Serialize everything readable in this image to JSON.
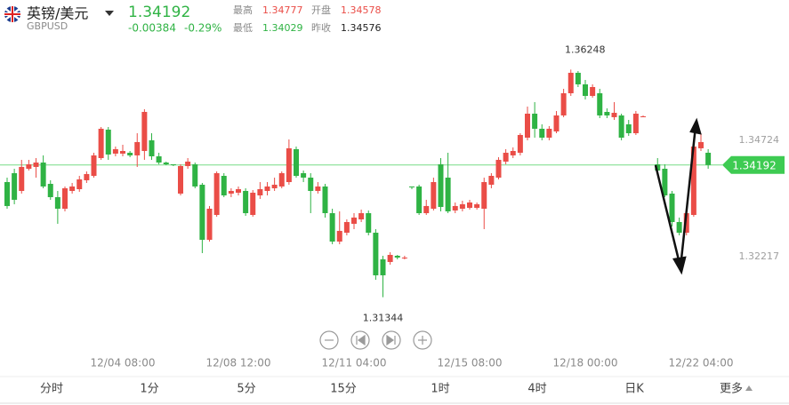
{
  "header": {
    "name": "英镑/美元",
    "code": "GBPUSD",
    "price": "1.34192",
    "change": "-0.00384",
    "change_pct": "-0.29%",
    "high_label": "最高",
    "high": "1.34777",
    "open_label": "开盘",
    "open": "1.34578",
    "low_label": "最低",
    "low": "1.34029",
    "prev_label": "昨收",
    "prev": "1.34576"
  },
  "tabs": [
    "分时",
    "1分",
    "5分",
    "15分",
    "1时",
    "4时",
    "日K",
    "更多"
  ],
  "chart_data": {
    "type": "candlestick",
    "up_color": "#ea4d47",
    "down_color": "#2fb344",
    "last_color": "#3ecb52",
    "ylim": [
      1.31049,
      1.36982
    ],
    "yticks": [
      1.34724,
      1.32217
    ],
    "last_price": 1.34192,
    "max_label": 1.36248,
    "min_label": 1.31344,
    "categories": [
      null,
      null,
      null,
      null,
      null,
      null,
      null,
      null,
      null,
      null,
      null,
      null,
      null,
      null,
      null,
      null,
      "12/04 08:00",
      null,
      null,
      null,
      null,
      null,
      null,
      null,
      null,
      null,
      null,
      null,
      null,
      null,
      null,
      null,
      "12/08 12:00",
      null,
      null,
      null,
      null,
      null,
      null,
      null,
      null,
      null,
      null,
      null,
      null,
      null,
      null,
      null,
      "12/11 04:00",
      null,
      null,
      null,
      null,
      null,
      null,
      null,
      null,
      null,
      null,
      null,
      null,
      null,
      null,
      null,
      "12/15 08:00",
      null,
      null,
      null,
      null,
      null,
      null,
      null,
      null,
      null,
      null,
      null,
      null,
      null,
      null,
      null,
      "12/18 00:00",
      null,
      null,
      null,
      null,
      null,
      null,
      null,
      null,
      null,
      null,
      null,
      null,
      null,
      null,
      null,
      "12/22 04:00",
      null
    ],
    "ohlc": [
      [
        1.33824,
        1.3392,
        1.3325,
        1.33308
      ],
      [
        1.34016,
        1.34111,
        1.33346,
        1.33442
      ],
      [
        1.33633,
        1.34303,
        1.33576,
        1.3415
      ],
      [
        1.34111,
        1.34303,
        1.34073,
        1.34207
      ],
      [
        1.3415,
        1.34341,
        1.3392,
        1.34245
      ],
      [
        1.34245,
        1.34399,
        1.3369,
        1.33729
      ],
      [
        1.33786,
        1.33863,
        1.33442,
        1.33499
      ],
      [
        1.33499,
        1.33633,
        1.32925,
        1.3325
      ],
      [
        1.3325,
        1.33729,
        1.33193,
        1.3369
      ],
      [
        1.33633,
        1.33805,
        1.33576,
        1.33729
      ],
      [
        1.33671,
        1.33958,
        1.33614,
        1.33882
      ],
      [
        1.33863,
        1.34054,
        1.33805,
        1.33997
      ],
      [
        1.33958,
        1.34456,
        1.3392,
        1.34399
      ],
      [
        1.34341,
        1.35011,
        1.34303,
        1.34973
      ],
      [
        1.34954,
        1.35011,
        1.34303,
        1.34418
      ],
      [
        1.34437,
        1.3459,
        1.34379,
        1.34533
      ],
      [
        1.34437,
        1.34628,
        1.34379,
        1.34494
      ],
      [
        1.34456,
        1.34494,
        1.3436,
        1.34399
      ],
      [
        1.34399,
        1.34877,
        1.3415,
        1.34686
      ],
      [
        1.34494,
        1.35394,
        1.34303,
        1.35336
      ],
      [
        1.34724,
        1.34877,
        1.34303,
        1.34379
      ],
      [
        1.34379,
        1.34456,
        1.34207,
        1.34245
      ],
      [
        1.34245,
        1.34265,
        1.34188,
        1.34207
      ],
      [
        1.34207,
        1.34207,
        1.34169,
        1.34188
      ],
      [
        1.33576,
        1.34207,
        1.33537,
        1.34169
      ],
      [
        1.34169,
        1.34341,
        1.34111,
        1.34265
      ],
      [
        1.34207,
        1.34245,
        1.3369,
        1.33729
      ],
      [
        1.33767,
        1.33805,
        1.32293,
        1.3258
      ],
      [
        1.3258,
        1.33308,
        1.32542,
        1.3325
      ],
      [
        1.33116,
        1.34054,
        1.33078,
        1.34016
      ],
      [
        1.33958,
        1.34016,
        1.33499,
        1.33537
      ],
      [
        1.33576,
        1.3369,
        1.33499,
        1.33633
      ],
      [
        1.33595,
        1.33729,
        1.33537,
        1.33671
      ],
      [
        1.33633,
        1.3369,
        1.33097,
        1.33154
      ],
      [
        1.33116,
        1.33652,
        1.33078,
        1.33595
      ],
      [
        1.33537,
        1.33824,
        1.33461,
        1.33671
      ],
      [
        1.33633,
        1.33824,
        1.33537,
        1.33729
      ],
      [
        1.3369,
        1.3392,
        1.33633,
        1.33767
      ],
      [
        1.33729,
        1.34054,
        1.3369,
        1.34016
      ],
      [
        1.33824,
        1.34743,
        1.33767,
        1.34552
      ],
      [
        1.34533,
        1.3459,
        1.3392,
        1.33958
      ],
      [
        1.34016,
        1.34073,
        1.33824,
        1.3392
      ],
      [
        1.3392,
        1.34016,
        1.33154,
        1.33633
      ],
      [
        1.33633,
        1.33824,
        1.33576,
        1.33729
      ],
      [
        1.33729,
        1.33786,
        1.33059,
        1.33154
      ],
      [
        1.33154,
        1.3325,
        1.32485,
        1.32542
      ],
      [
        1.32542,
        1.33193,
        1.32485,
        1.32772
      ],
      [
        1.32733,
        1.3302,
        1.32676,
        1.32963
      ],
      [
        1.32925,
        1.33154,
        1.3281,
        1.33059
      ],
      [
        1.3302,
        1.33231,
        1.32963,
        1.33154
      ],
      [
        1.33154,
        1.33212,
        1.32676,
        1.32733
      ],
      [
        1.32733,
        1.3281,
        1.31719,
        1.31815
      ],
      [
        1.32159,
        1.32236,
        1.31344,
        1.31815
      ],
      [
        1.32102,
        1.32312,
        1.32044,
        1.32255
      ],
      [
        1.32236,
        1.32255,
        1.32159,
        1.32197
      ],
      [
        1.32197,
        1.32236,
        1.32159,
        1.32197
      ],
      [
        1.33729,
        1.33729,
        1.33671,
        1.3371
      ],
      [
        1.33729,
        1.33767,
        1.33116,
        1.33154
      ],
      [
        1.33154,
        1.33442,
        1.33116,
        1.33308
      ],
      [
        1.3325,
        1.3392,
        1.33212,
        1.33824
      ],
      [
        1.34207,
        1.34341,
        1.33193,
        1.33288
      ],
      [
        1.3392,
        1.34456,
        1.33154,
        1.33193
      ],
      [
        1.33212,
        1.33384,
        1.33154,
        1.33308
      ],
      [
        1.3325,
        1.33422,
        1.33193,
        1.33346
      ],
      [
        1.33269,
        1.33442,
        1.33231,
        1.33384
      ],
      [
        1.33269,
        1.33384,
        1.33231,
        1.33346
      ],
      [
        1.3325,
        1.3392,
        1.3281,
        1.33824
      ],
      [
        1.33767,
        1.34016,
        1.3369,
        1.33958
      ],
      [
        1.3392,
        1.3436,
        1.33882,
        1.34303
      ],
      [
        1.34265,
        1.34533,
        1.34207,
        1.34456
      ],
      [
        1.34399,
        1.34571,
        1.34341,
        1.34494
      ],
      [
        1.34456,
        1.34877,
        1.34399,
        1.34839
      ],
      [
        1.34781,
        1.35451,
        1.34724,
        1.35298
      ],
      [
        1.35298,
        1.35547,
        1.34781,
        1.34973
      ],
      [
        1.34973,
        1.35068,
        1.34724,
        1.34781
      ],
      [
        1.34781,
        1.3503,
        1.34724,
        1.34973
      ],
      [
        1.34915,
        1.35356,
        1.34877,
        1.3526
      ],
      [
        1.3526,
        1.35834,
        1.35222,
        1.35738
      ],
      [
        1.35738,
        1.36248,
        1.35681,
        1.36179
      ],
      [
        1.36179,
        1.36217,
        1.35872,
        1.3593
      ],
      [
        1.3593,
        1.36025,
        1.35604,
        1.35681
      ],
      [
        1.35681,
        1.3593,
        1.35643,
        1.35872
      ],
      [
        1.35738,
        1.35834,
        1.35202,
        1.3526
      ],
      [
        1.35336,
        1.35413,
        1.35202,
        1.3526
      ],
      [
        1.35222,
        1.35547,
        1.35164,
        1.35317
      ],
      [
        1.3526,
        1.35298,
        1.34724,
        1.34781
      ],
      [
        1.35068,
        1.35164,
        1.3482,
        1.34877
      ],
      [
        1.34877,
        1.35356,
        1.34839,
        1.35298
      ],
      [
        1.35241,
        1.3526,
        1.35222,
        1.35241
      ],
      null,
      [
        1.34207,
        1.34341,
        1.34016,
        1.34073
      ],
      [
        1.34111,
        1.34207,
        1.33499,
        1.33537
      ],
      [
        1.33576,
        1.33633,
        1.32867,
        1.32963
      ],
      [
        1.32963,
        1.33059,
        1.32676,
        1.32733
      ],
      [
        1.32733,
        1.33193,
        1.32676,
        1.33154
      ],
      [
        1.33116,
        1.34686,
        1.33078,
        1.3459
      ],
      [
        1.34552,
        1.34877,
        1.34494,
        1.34686
      ],
      [
        1.34456,
        1.34533,
        1.34111,
        1.34192
      ]
    ]
  }
}
